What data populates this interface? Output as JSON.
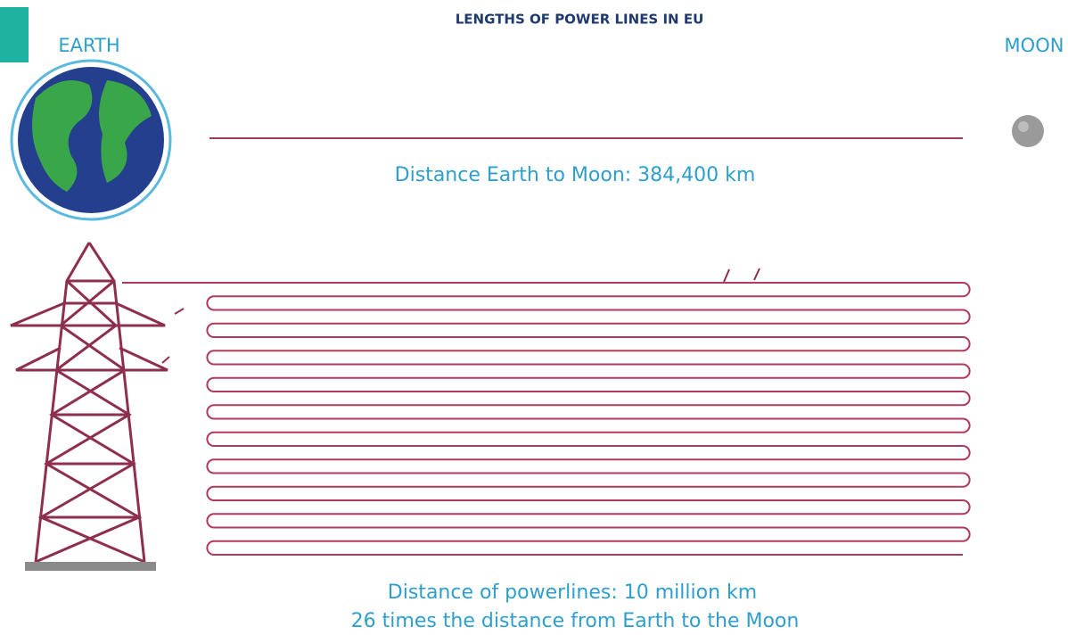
{
  "title": "LENGTHS OF POWER LINES IN EU",
  "earth_label": "EARTH",
  "moon_label": "MOON",
  "moon_distance_text": "Distance Earth to Moon: 384,400 km",
  "powerline_text": "Distance of powerlines: 10 million km",
  "comparison_text": "26 times the distance from Earth to the Moon"
}
